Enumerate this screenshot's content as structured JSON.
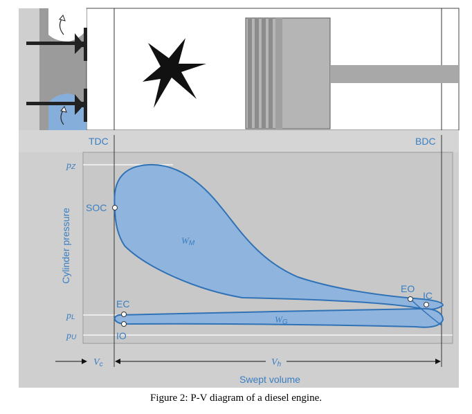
{
  "diagram": {
    "marker_tdc": "TDC",
    "marker_bdc": "BDC",
    "y_axis_label": "Cylinder pressure",
    "x_axis_label": "Swept volume",
    "pz": {
      "sym": "p",
      "sub": "Z"
    },
    "pl": {
      "sym": "p",
      "sub": "L"
    },
    "pu": {
      "sym": "p",
      "sub": "U"
    },
    "soc": "SOC",
    "eo": "EO",
    "ic": "IC",
    "ec": "EC",
    "io": "IO",
    "wm": {
      "sym": "W",
      "sub": "M"
    },
    "wg": {
      "sym": "W",
      "sub": "G"
    },
    "vc": {
      "sym": "V",
      "sub": "c"
    },
    "vh": {
      "sym": "V",
      "sub": "h"
    }
  },
  "caption": "Figure 2: P-V diagram of a diesel engine.",
  "colors": {
    "panel_gray": "#c8c8c8",
    "loop_fill": "#8fb4de",
    "loop_stroke": "#2f72b6",
    "label_blue": "#3a7ec2"
  }
}
